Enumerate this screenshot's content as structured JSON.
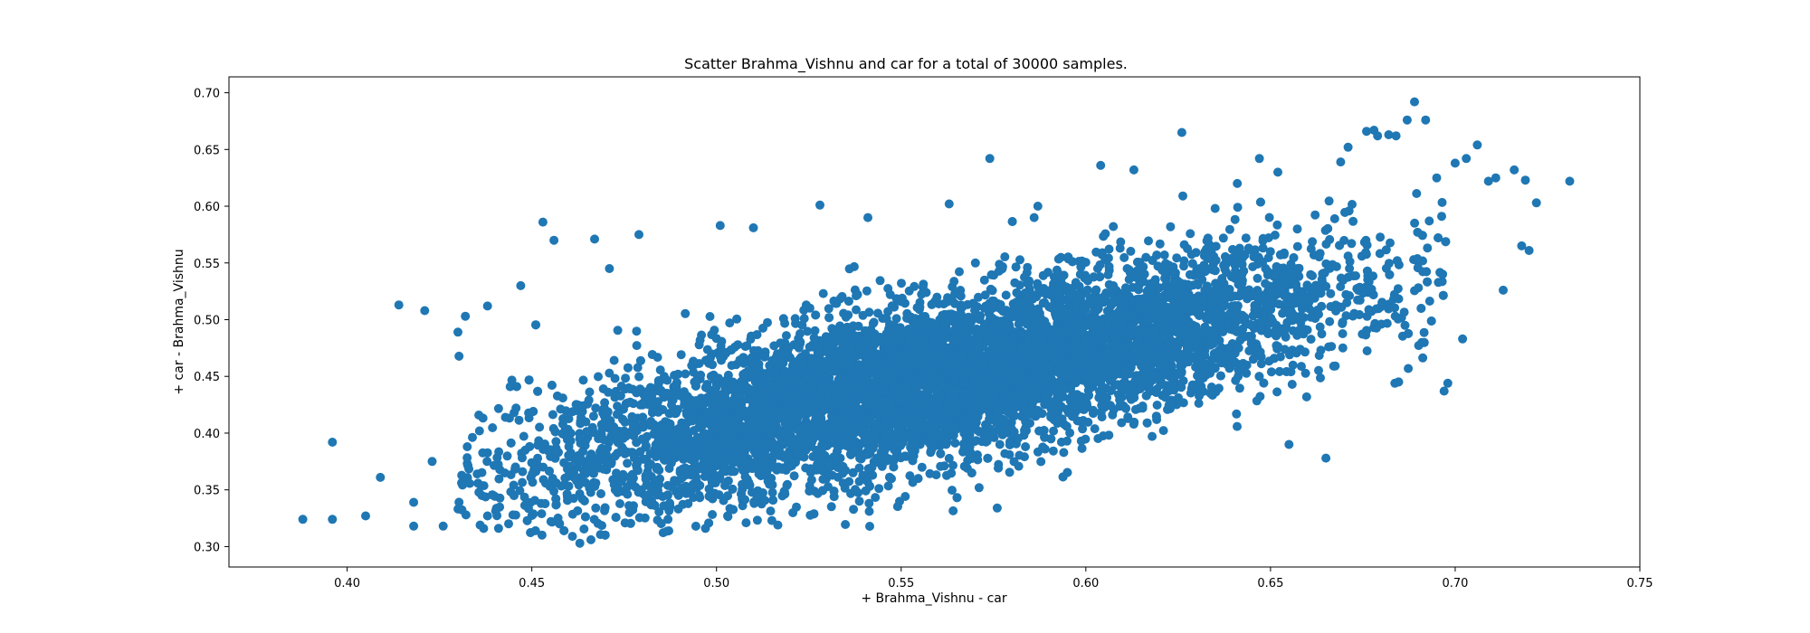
{
  "chart_data": {
    "type": "scatter",
    "title": "Scatter Brahma_Vishnu and car for a total of 30000 samples.",
    "xlabel": "+ Brahma_Vishnu - car",
    "ylabel": "+ car - Brahma_Vishnu",
    "xlim": [
      0.368,
      0.75
    ],
    "ylim": [
      0.282,
      0.714
    ],
    "xticks": [
      "0.40",
      "0.45",
      "0.50",
      "0.55",
      "0.60",
      "0.65",
      "0.70",
      "0.75"
    ],
    "yticks": [
      "0.30",
      "0.35",
      "0.40",
      "0.45",
      "0.50",
      "0.55",
      "0.60",
      "0.65",
      "0.70"
    ],
    "grid": false,
    "legend": false,
    "total_samples": 30000,
    "color": "#1f77b4",
    "trend": {
      "slope": 0.7,
      "intercept": 0.055,
      "x_mean": 0.56,
      "x_sd": 0.055,
      "y_resid_sd": 0.035
    },
    "points": [
      [
        0.388,
        0.324
      ],
      [
        0.396,
        0.324
      ],
      [
        0.396,
        0.392
      ],
      [
        0.405,
        0.327
      ],
      [
        0.409,
        0.361
      ],
      [
        0.414,
        0.513
      ],
      [
        0.418,
        0.318
      ],
      [
        0.418,
        0.339
      ],
      [
        0.421,
        0.508
      ],
      [
        0.423,
        0.375
      ],
      [
        0.426,
        0.318
      ],
      [
        0.43,
        0.489
      ],
      [
        0.432,
        0.503
      ],
      [
        0.436,
        0.319
      ],
      [
        0.438,
        0.512
      ],
      [
        0.441,
        0.316
      ],
      [
        0.447,
        0.53
      ],
      [
        0.451,
        0.314
      ],
      [
        0.453,
        0.586
      ],
      [
        0.456,
        0.57
      ],
      [
        0.461,
        0.309
      ],
      [
        0.463,
        0.303
      ],
      [
        0.466,
        0.306
      ],
      [
        0.467,
        0.571
      ],
      [
        0.471,
        0.545
      ],
      [
        0.479,
        0.575
      ],
      [
        0.497,
        0.316
      ],
      [
        0.501,
        0.583
      ],
      [
        0.503,
        0.327
      ],
      [
        0.508,
        0.321
      ],
      [
        0.51,
        0.581
      ],
      [
        0.515,
        0.323
      ],
      [
        0.528,
        0.601
      ],
      [
        0.541,
        0.59
      ],
      [
        0.563,
        0.602
      ],
      [
        0.574,
        0.642
      ],
      [
        0.576,
        0.334
      ],
      [
        0.586,
        0.59
      ],
      [
        0.587,
        0.6
      ],
      [
        0.604,
        0.636
      ],
      [
        0.613,
        0.632
      ],
      [
        0.626,
        0.665
      ],
      [
        0.635,
        0.598
      ],
      [
        0.641,
        0.62
      ],
      [
        0.647,
        0.642
      ],
      [
        0.652,
        0.63
      ],
      [
        0.655,
        0.39
      ],
      [
        0.665,
        0.378
      ],
      [
        0.669,
        0.639
      ],
      [
        0.671,
        0.652
      ],
      [
        0.676,
        0.666
      ],
      [
        0.678,
        0.667
      ],
      [
        0.679,
        0.662
      ],
      [
        0.682,
        0.663
      ],
      [
        0.684,
        0.662
      ],
      [
        0.687,
        0.676
      ],
      [
        0.689,
        0.692
      ],
      [
        0.692,
        0.676
      ],
      [
        0.695,
        0.625
      ],
      [
        0.697,
        0.437
      ],
      [
        0.698,
        0.444
      ],
      [
        0.7,
        0.638
      ],
      [
        0.702,
        0.483
      ],
      [
        0.703,
        0.642
      ],
      [
        0.706,
        0.654
      ],
      [
        0.709,
        0.622
      ],
      [
        0.711,
        0.625
      ],
      [
        0.713,
        0.526
      ],
      [
        0.716,
        0.632
      ],
      [
        0.718,
        0.565
      ],
      [
        0.719,
        0.623
      ],
      [
        0.72,
        0.561
      ],
      [
        0.722,
        0.603
      ],
      [
        0.731,
        0.622
      ]
    ]
  }
}
